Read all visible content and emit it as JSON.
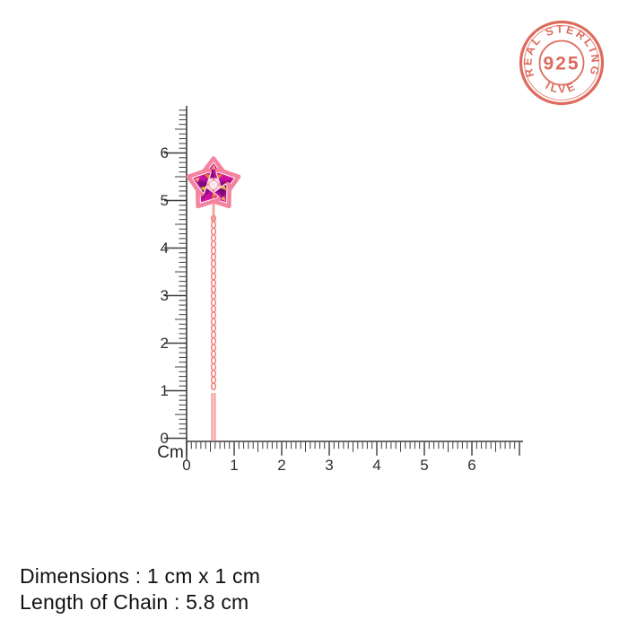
{
  "stamp": {
    "top_text": "REAL STERLING",
    "center_text": "925",
    "bottom_text": "SILVER",
    "color": "#dc6455"
  },
  "ruler": {
    "unit_label": "Cm",
    "vertical_labels": [
      "0",
      "1",
      "2",
      "3",
      "4",
      "5",
      "6"
    ],
    "horizontal_labels": [
      "0",
      "1",
      "2",
      "3",
      "4",
      "5",
      "6"
    ],
    "tick_color": "#3c3c3c"
  },
  "product": {
    "name": "flower-chain-drop-earring",
    "colors": {
      "metal": "#f4849e",
      "magenta": "#d5119e",
      "purple": "#740c7a",
      "orange": "#f59214",
      "yellow": "#ffc52e",
      "chain": "#ee8078"
    }
  },
  "footer": {
    "line1": "Dimensions : 1 cm x 1 cm",
    "line2": "Length of Chain : 5.8 cm"
  }
}
